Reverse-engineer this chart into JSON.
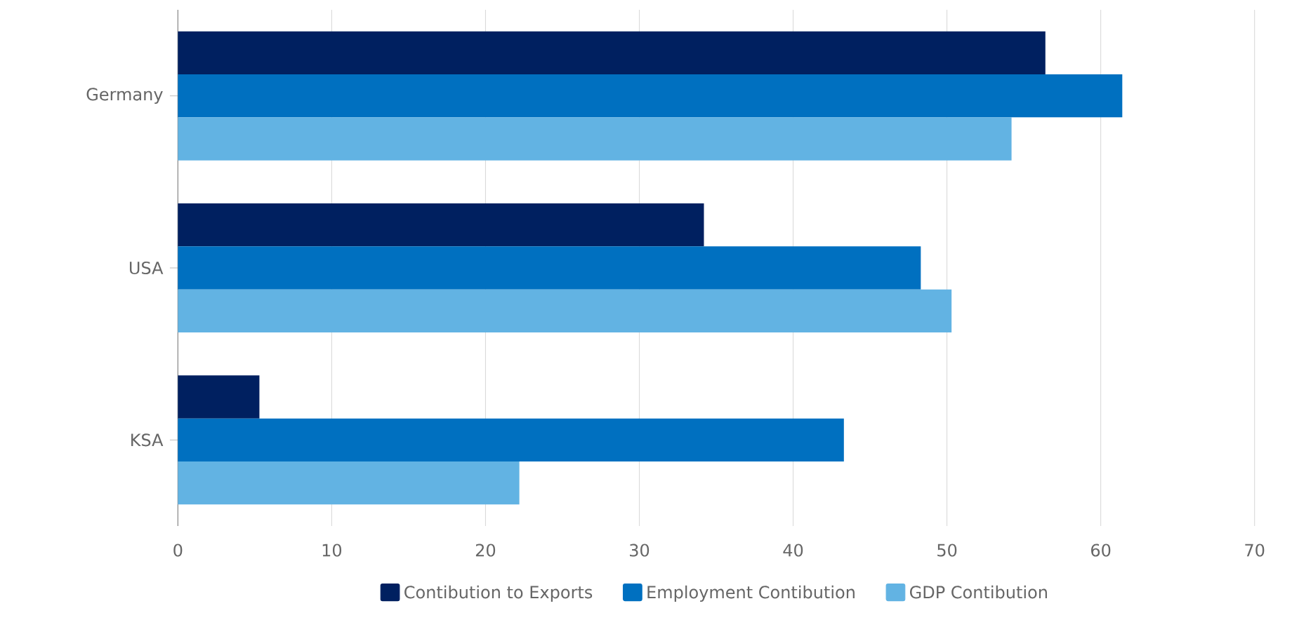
{
  "chart_data": {
    "type": "bar",
    "orientation": "horizontal",
    "categories": [
      "Germany",
      "USA",
      "KSA"
    ],
    "series": [
      {
        "name": "Contibution to Exports",
        "color": "#002060",
        "values": [
          56.4,
          34.2,
          5.3
        ]
      },
      {
        "name": "Employment Contibution",
        "color": "#0070c0",
        "values": [
          61.4,
          48.3,
          43.3
        ]
      },
      {
        "name": "GDP Contibution",
        "color": "#62b3e3",
        "values": [
          54.2,
          50.3,
          22.2
        ]
      }
    ],
    "xlim": [
      0,
      70
    ],
    "xticks": [
      0,
      10,
      20,
      30,
      40,
      50,
      60,
      70
    ],
    "grid": "x",
    "legend": "bottom"
  }
}
